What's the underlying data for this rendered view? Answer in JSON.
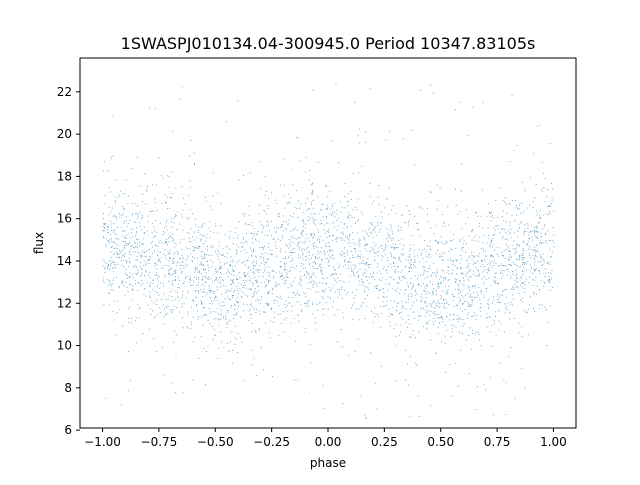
{
  "chart_data": {
    "type": "scatter",
    "title": "1SWASPJ010134.04-300945.0 Period 10347.83105s",
    "xlabel": "phase",
    "ylabel": "flux",
    "xlim": [
      -1.1,
      1.1
    ],
    "ylim": [
      6.1,
      23.6
    ],
    "x_ticks": [
      -1.0,
      -0.75,
      -0.5,
      -0.25,
      0.0,
      0.25,
      0.5,
      0.75,
      1.0
    ],
    "x_tick_labels": [
      "−1.00",
      "−0.75",
      "−0.50",
      "−0.25",
      "0.00",
      "0.25",
      "0.50",
      "0.75",
      "1.00"
    ],
    "y_ticks": [
      6,
      8,
      10,
      12,
      14,
      16,
      18,
      20,
      22
    ],
    "y_tick_labels": [
      "6",
      "8",
      "10",
      "12",
      "14",
      "16",
      "18",
      "20",
      "22"
    ],
    "point_color": "#1f77b4",
    "grid": false,
    "legend": "none",
    "series": [
      {
        "x": [
          -1.0,
          -0.9,
          -0.8,
          -0.7,
          -0.6,
          -0.5,
          -0.45,
          -0.4,
          -0.3,
          -0.2,
          -0.1,
          0.0,
          0.1,
          0.2,
          0.3,
          0.4,
          0.5,
          0.55,
          0.6,
          0.7,
          0.8,
          0.9,
          1.0
        ],
        "y": [
          14.4,
          14.5,
          14.4,
          14.0,
          13.5,
          13.0,
          12.8,
          13.0,
          13.6,
          14.1,
          14.4,
          14.5,
          14.4,
          14.1,
          13.6,
          13.1,
          12.8,
          12.7,
          12.9,
          13.5,
          14.0,
          14.4,
          14.5
        ]
      }
    ]
  }
}
